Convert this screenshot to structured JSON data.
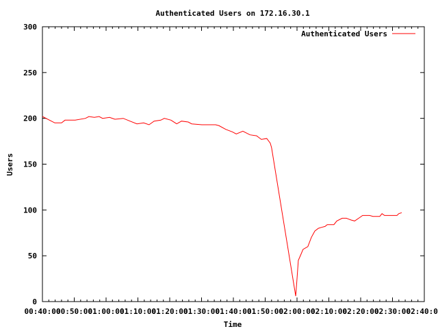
{
  "chart_data": {
    "type": "line",
    "title": "Authenticated Users on 172.16.30.1",
    "xlabel": "Time",
    "ylabel": "Users",
    "x_units": "minutes after 00:00:00",
    "xlim": [
      40,
      160
    ],
    "ylim": [
      0,
      300
    ],
    "grid": false,
    "legend_position": "top-right",
    "x_ticks": [
      {
        "value": 40,
        "label": "00:40:00"
      },
      {
        "value": 50,
        "label": "00:50:00"
      },
      {
        "value": 60,
        "label": "01:00:00"
      },
      {
        "value": 70,
        "label": "01:10:00"
      },
      {
        "value": 80,
        "label": "01:20:00"
      },
      {
        "value": 90,
        "label": "01:30:00"
      },
      {
        "value": 100,
        "label": "01:40:00"
      },
      {
        "value": 110,
        "label": "01:50:00"
      },
      {
        "value": 120,
        "label": "02:00:00"
      },
      {
        "value": 130,
        "label": "02:10:00"
      },
      {
        "value": 140,
        "label": "02:20:00"
      },
      {
        "value": 150,
        "label": "02:30:00"
      },
      {
        "value": 160,
        "label": "02:40:00"
      }
    ],
    "y_ticks": [
      {
        "value": 0,
        "label": "0"
      },
      {
        "value": 50,
        "label": "50"
      },
      {
        "value": 100,
        "label": "100"
      },
      {
        "value": 150,
        "label": "150"
      },
      {
        "value": 200,
        "label": "200"
      },
      {
        "value": 250,
        "label": "250"
      },
      {
        "value": 300,
        "label": "300"
      }
    ],
    "series": [
      {
        "name": "Authenticated Users",
        "color": "#ff0000",
        "x": [
          40.0,
          43.9,
          46.0,
          47.1,
          50.3,
          53.5,
          54.6,
          56.3,
          57.8,
          58.9,
          61.1,
          62.8,
          65.4,
          67.5,
          69.7,
          71.8,
          73.5,
          75.1,
          77.2,
          78.3,
          80.4,
          82.2,
          83.7,
          85.8,
          86.9,
          90.1,
          94.4,
          95.5,
          97.6,
          99.8,
          100.9,
          103.0,
          105.2,
          107.3,
          108.8,
          110.5,
          111.6,
          112.0,
          119.6,
          120.0,
          120.4,
          121.3,
          121.9,
          123.4,
          124.5,
          125.6,
          126.7,
          127.7,
          128.8,
          129.5,
          131.6,
          132.5,
          134.2,
          135.5,
          137.0,
          138.1,
          139.8,
          140.6,
          142.8,
          143.9,
          146.0,
          146.7,
          147.5,
          149.2,
          151.4,
          152.0,
          152.9
        ],
        "y": [
          202,
          195,
          195,
          198,
          198,
          200,
          202,
          201,
          202,
          200,
          201,
          199,
          200,
          197,
          194,
          195,
          193,
          197,
          198,
          200,
          198,
          194,
          197,
          196,
          194,
          193,
          193,
          192,
          188,
          185,
          183,
          186,
          182,
          181,
          177,
          178,
          173,
          168,
          6,
          25,
          45,
          52,
          57,
          60,
          70,
          77,
          80,
          81,
          82,
          84,
          84,
          88,
          91,
          91,
          89,
          88,
          92,
          94,
          94,
          93,
          93,
          96,
          94,
          94,
          94,
          96,
          97
        ]
      }
    ]
  }
}
